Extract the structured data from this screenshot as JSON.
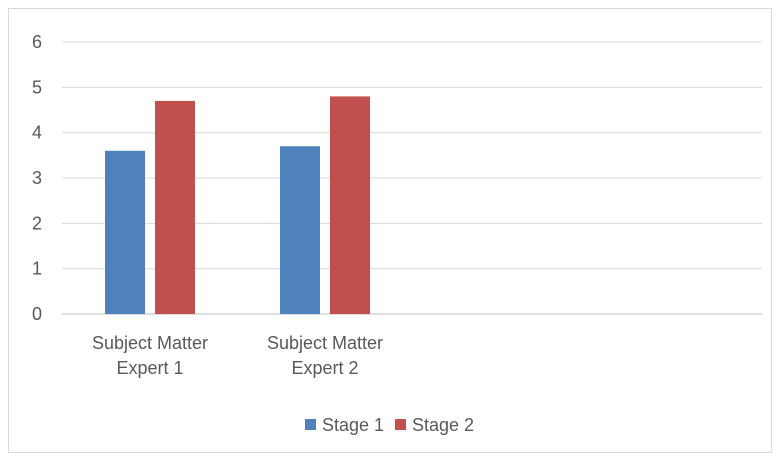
{
  "chart_data": {
    "type": "bar",
    "categories": [
      "Subject Matter Expert 1",
      "Subject Matter Expert 2"
    ],
    "category_lines": [
      [
        "Subject Matter",
        "Expert 1"
      ],
      [
        "Subject Matter",
        "Expert 2"
      ]
    ],
    "series": [
      {
        "name": "Stage 1",
        "values": [
          3.6,
          3.7
        ],
        "color": "#4F81BD"
      },
      {
        "name": "Stage 2",
        "values": [
          4.7,
          4.8
        ],
        "color": "#C0504D"
      }
    ],
    "yticks": [
      "0",
      "1",
      "2",
      "3",
      "4",
      "5",
      "6"
    ],
    "ylim": [
      0,
      6
    ],
    "grid": true,
    "legend_position": "bottom",
    "title": "",
    "xlabel": "",
    "ylabel": ""
  }
}
